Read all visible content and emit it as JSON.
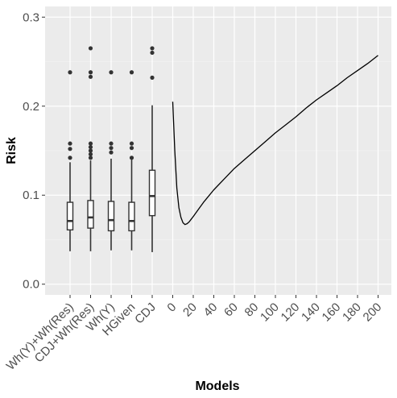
{
  "chart_data": {
    "type": "boxplot+line",
    "xlabel": "Models",
    "ylabel": "Risk",
    "ylim": [
      -0.012,
      0.312
    ],
    "y_ticks": [
      0.0,
      0.1,
      0.2,
      0.3
    ],
    "y_tick_labels": [
      "0.0",
      "0.1",
      "0.2",
      "0.3"
    ],
    "grid": true,
    "boxplots": [
      {
        "name": "Wh(Y)+Wh(Res)",
        "min": 0.037,
        "q1": 0.061,
        "median": 0.071,
        "q3": 0.092,
        "max": 0.137,
        "outliers": [
          0.142,
          0.152,
          0.158,
          0.238
        ]
      },
      {
        "name": "CDJ+Wh(Res)",
        "min": 0.037,
        "q1": 0.063,
        "median": 0.075,
        "q3": 0.094,
        "max": 0.139,
        "outliers": [
          0.142,
          0.146,
          0.15,
          0.154,
          0.158,
          0.233,
          0.238,
          0.265
        ]
      },
      {
        "name": "Wh(Y)",
        "min": 0.038,
        "q1": 0.06,
        "median": 0.072,
        "q3": 0.093,
        "max": 0.141,
        "outliers": [
          0.148,
          0.153,
          0.158,
          0.238
        ]
      },
      {
        "name": "HGiven",
        "min": 0.038,
        "q1": 0.06,
        "median": 0.071,
        "q3": 0.092,
        "max": 0.14,
        "outliers": [
          0.142,
          0.153,
          0.158,
          0.238
        ]
      },
      {
        "name": "CDJ",
        "min": 0.036,
        "q1": 0.077,
        "median": 0.099,
        "q3": 0.128,
        "max": 0.201,
        "outliers": [
          0.232,
          0.26,
          0.265
        ]
      }
    ],
    "line": {
      "x_ticks": [
        0,
        20,
        40,
        60,
        80,
        100,
        120,
        140,
        160,
        180,
        200
      ],
      "x_tick_labels": [
        "0",
        "20",
        "40",
        "60",
        "80",
        "100",
        "120",
        "140",
        "160",
        "180",
        "200"
      ],
      "x": [
        0,
        2,
        4,
        6,
        8,
        10,
        12,
        14,
        16,
        18,
        20,
        25,
        30,
        40,
        50,
        60,
        70,
        80,
        90,
        100,
        110,
        120,
        130,
        140,
        150,
        160,
        170,
        180,
        190,
        200
      ],
      "y": [
        0.205,
        0.15,
        0.108,
        0.086,
        0.075,
        0.069,
        0.067,
        0.068,
        0.07,
        0.073,
        0.076,
        0.084,
        0.092,
        0.106,
        0.118,
        0.13,
        0.14,
        0.15,
        0.16,
        0.17,
        0.179,
        0.188,
        0.198,
        0.207,
        0.215,
        0.223,
        0.232,
        0.24,
        0.248,
        0.257
      ]
    }
  }
}
